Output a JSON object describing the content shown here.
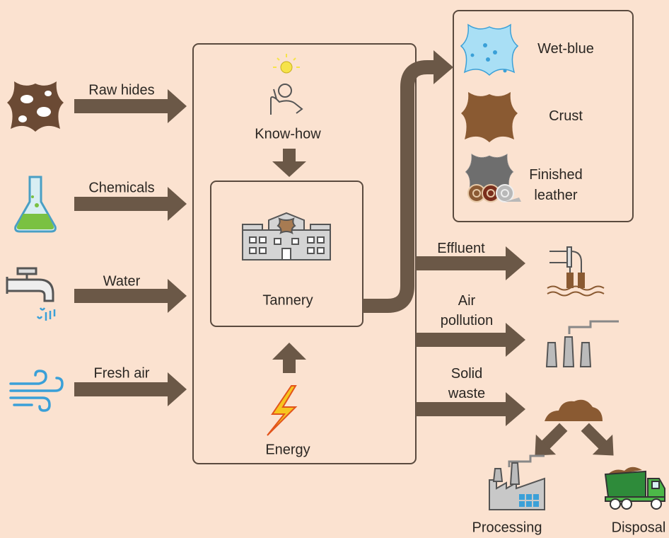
{
  "inputs": [
    {
      "label": "Raw hides"
    },
    {
      "label": "Chemicals"
    },
    {
      "label": "Water"
    },
    {
      "label": "Fresh air"
    }
  ],
  "center": {
    "know_how": "Know-how",
    "tannery": "Tannery",
    "energy": "Energy"
  },
  "products": [
    {
      "label": [
        "Wet-blue"
      ]
    },
    {
      "label": [
        "Crust"
      ]
    },
    {
      "label": [
        "Finished",
        "leather"
      ]
    }
  ],
  "outputs": [
    {
      "label": [
        "Effluent"
      ]
    },
    {
      "label": [
        "Air",
        "pollution"
      ]
    },
    {
      "label": [
        "Solid",
        "waste"
      ]
    }
  ],
  "destinations": [
    {
      "label": "Processing"
    },
    {
      "label": "Disposal"
    }
  ]
}
